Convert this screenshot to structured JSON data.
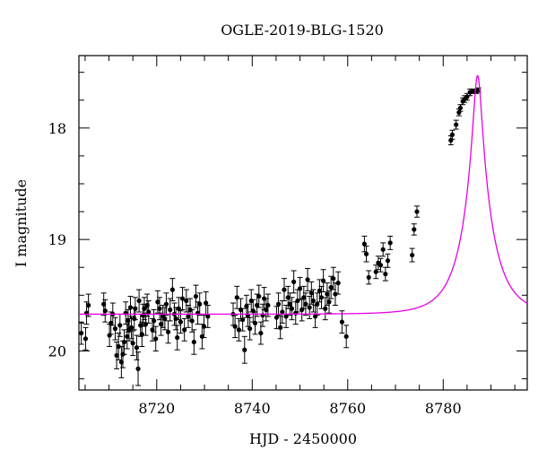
{
  "chart_data": {
    "type": "scatter",
    "title": "OGLE-2019-BLG-1520",
    "xlabel": "HJD - 2450000",
    "ylabel": "I magnitude",
    "xlim": [
      8703.7,
      8797.6
    ],
    "ylim": [
      20.35,
      17.35
    ],
    "y_inverted": true,
    "x_major_ticks": [
      8720,
      8740,
      8760,
      8780
    ],
    "x_minor_step": 5,
    "y_major_ticks": [
      18,
      19,
      20
    ],
    "y_minor_step": 0.25,
    "grid": false,
    "colors": {
      "data": "#000000",
      "model": "#e600e6"
    },
    "series": [
      {
        "kind": "points_with_errorbars",
        "x": [
          8704.2,
          8705.1,
          8705.3,
          8705.7,
          8708.9,
          8709.2,
          8710.1,
          8710.4,
          8710.8,
          8711.3,
          8711.6,
          8712.0,
          8712.3,
          8712.6,
          8712.9,
          8713.2,
          8713.5,
          8713.8,
          8714.0,
          8714.2,
          8714.5,
          8714.7,
          8715.0,
          8715.3,
          8715.5,
          8715.8,
          8716.1,
          8716.3,
          8716.6,
          8716.9,
          8717.1,
          8717.4,
          8717.7,
          8718.0,
          8718.3,
          8719.1,
          8719.4,
          8719.8,
          8720.2,
          8720.6,
          8720.9,
          8721.3,
          8721.7,
          8722.0,
          8722.4,
          8722.8,
          8723.3,
          8723.7,
          8724.0,
          8724.3,
          8724.6,
          8725.0,
          8725.4,
          8725.8,
          8726.2,
          8726.6,
          8727.0,
          8727.4,
          8727.8,
          8728.2,
          8728.6,
          8729.0,
          8729.5,
          8729.9,
          8730.3,
          8730.7,
          8736.0,
          8736.4,
          8736.8,
          8737.2,
          8737.6,
          8738.0,
          8738.4,
          8738.8,
          8739.1,
          8739.5,
          8739.8,
          8740.2,
          8740.6,
          8741.0,
          8741.4,
          8741.8,
          8742.2,
          8742.5,
          8742.9,
          8743.3,
          8745.1,
          8745.5,
          8745.9,
          8746.3,
          8746.7,
          8747.1,
          8747.5,
          8747.9,
          8748.3,
          8748.7,
          8749.1,
          8749.5,
          8750.0,
          8750.4,
          8750.8,
          8751.2,
          8751.6,
          8752.0,
          8752.4,
          8752.8,
          8753.2,
          8753.6,
          8754.1,
          8754.5,
          8754.9,
          8755.3,
          8755.7,
          8756.1,
          8756.5,
          8757.0,
          8757.4,
          8758.0,
          8758.8,
          8759.7,
          8763.5,
          8763.9,
          8764.4,
          8765.9,
          8766.4,
          8766.9,
          8767.4,
          8767.9,
          8768.4,
          8768.9,
          8773.5,
          8773.9,
          8774.5,
          8781.6,
          8781.9,
          8782.7,
          8783.3,
          8783.6,
          8784.1,
          8784.5,
          8785.0,
          8785.6,
          8786.2,
          8786.9,
          8787.4
        ],
        "y": [
          19.84,
          19.89,
          19.66,
          19.59,
          19.58,
          19.64,
          19.86,
          19.75,
          19.67,
          19.8,
          20.04,
          19.96,
          19.77,
          20.1,
          20.03,
          19.92,
          19.66,
          19.87,
          19.73,
          19.81,
          19.61,
          19.79,
          19.93,
          19.71,
          19.62,
          19.97,
          20.16,
          19.55,
          19.77,
          19.85,
          19.68,
          19.62,
          19.76,
          19.59,
          19.65,
          19.81,
          19.73,
          19.89,
          19.56,
          19.62,
          19.76,
          19.69,
          19.71,
          19.58,
          19.83,
          19.63,
          19.45,
          19.67,
          19.71,
          19.88,
          19.62,
          19.74,
          19.53,
          19.81,
          19.55,
          19.69,
          19.63,
          19.73,
          19.92,
          19.51,
          19.66,
          19.58,
          19.87,
          19.78,
          19.57,
          19.69,
          19.67,
          19.78,
          19.52,
          19.81,
          19.63,
          19.72,
          19.99,
          19.6,
          19.68,
          19.8,
          19.55,
          19.64,
          19.75,
          19.59,
          19.51,
          19.84,
          19.68,
          19.53,
          19.63,
          19.59,
          19.7,
          19.58,
          19.79,
          19.65,
          19.45,
          19.69,
          19.52,
          19.58,
          19.62,
          19.38,
          19.66,
          19.55,
          19.44,
          19.63,
          19.52,
          19.58,
          19.36,
          19.61,
          19.48,
          19.55,
          19.69,
          19.58,
          19.46,
          19.52,
          19.37,
          19.62,
          19.49,
          19.56,
          19.43,
          19.35,
          19.49,
          19.39,
          19.74,
          19.87,
          19.04,
          19.13,
          19.34,
          19.29,
          19.21,
          19.23,
          19.09,
          19.31,
          19.19,
          19.03,
          19.14,
          18.91,
          18.75,
          18.11,
          18.06,
          17.97,
          17.86,
          17.82,
          17.76,
          17.74,
          17.72,
          17.68,
          17.67,
          17.67,
          17.66
        ],
        "yerr": [
          0.1,
          0.1,
          0.1,
          0.1,
          0.1,
          0.1,
          0.1,
          0.1,
          0.1,
          0.1,
          0.12,
          0.12,
          0.1,
          0.14,
          0.12,
          0.11,
          0.1,
          0.11,
          0.1,
          0.1,
          0.1,
          0.1,
          0.11,
          0.1,
          0.1,
          0.11,
          0.15,
          0.1,
          0.1,
          0.11,
          0.1,
          0.1,
          0.1,
          0.1,
          0.1,
          0.1,
          0.1,
          0.11,
          0.1,
          0.1,
          0.1,
          0.1,
          0.1,
          0.1,
          0.1,
          0.1,
          0.1,
          0.1,
          0.1,
          0.11,
          0.1,
          0.1,
          0.1,
          0.1,
          0.1,
          0.1,
          0.1,
          0.1,
          0.11,
          0.1,
          0.1,
          0.1,
          0.11,
          0.1,
          0.1,
          0.1,
          0.1,
          0.1,
          0.1,
          0.1,
          0.1,
          0.1,
          0.12,
          0.1,
          0.1,
          0.1,
          0.1,
          0.1,
          0.1,
          0.1,
          0.1,
          0.1,
          0.1,
          0.1,
          0.1,
          0.1,
          0.1,
          0.1,
          0.1,
          0.1,
          0.1,
          0.1,
          0.1,
          0.1,
          0.1,
          0.1,
          0.1,
          0.1,
          0.1,
          0.1,
          0.1,
          0.1,
          0.1,
          0.1,
          0.1,
          0.1,
          0.1,
          0.1,
          0.1,
          0.1,
          0.1,
          0.1,
          0.1,
          0.1,
          0.1,
          0.1,
          0.1,
          0.1,
          0.1,
          0.1,
          0.07,
          0.07,
          0.06,
          0.06,
          0.06,
          0.06,
          0.06,
          0.06,
          0.06,
          0.06,
          0.06,
          0.05,
          0.05,
          0.04,
          0.04,
          0.04,
          0.03,
          0.03,
          0.03,
          0.03,
          0.03,
          0.03,
          0.02,
          0.02,
          0.02
        ]
      },
      {
        "kind": "model_curve",
        "t0": 8787.2,
        "tE": 6.1,
        "u0": 0.14,
        "m_base": 19.67,
        "x_range": [
          8703.7,
          8797.6
        ]
      }
    ]
  }
}
